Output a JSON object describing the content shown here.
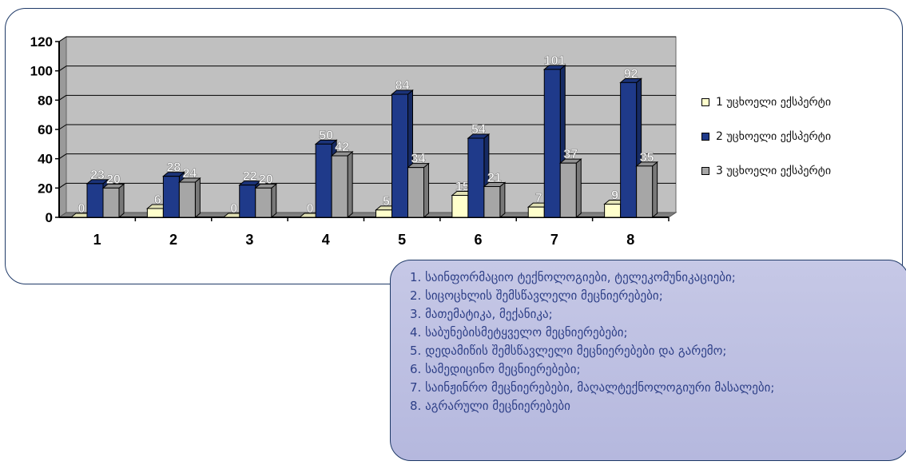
{
  "chart_data": {
    "type": "bar",
    "categories": [
      "1",
      "2",
      "3",
      "4",
      "5",
      "6",
      "7",
      "8"
    ],
    "series": [
      {
        "name": "1 უცხოელი ექსპერტი",
        "values": [
          0,
          6,
          0,
          0,
          5,
          15,
          7,
          9
        ],
        "labels": [
          "0",
          "6",
          "0",
          "0",
          "5",
          "15",
          "7",
          "9"
        ],
        "color": "#ffffcc"
      },
      {
        "name": "2 უცხოელი ექსპერტი",
        "values": [
          23,
          28,
          22,
          50,
          84,
          54,
          101,
          92
        ],
        "labels": [
          "23",
          "28",
          "22",
          "50",
          "84",
          "54",
          "101",
          "92"
        ],
        "color": "#1f3a8a"
      },
      {
        "name": "3 უცხოელი ექსპერტი",
        "values": [
          20,
          24,
          20,
          42,
          34,
          21,
          37,
          35
        ],
        "labels": [
          "20",
          "24",
          "20",
          "42",
          "34",
          "21",
          "37",
          "35"
        ],
        "color": "#a6a6a6"
      }
    ],
    "yticks": [
      "0",
      "20",
      "40",
      "60",
      "80",
      "100",
      "120"
    ],
    "ylim": [
      0,
      120
    ],
    "grid": true,
    "legend_position": "right",
    "plot_background": "#c0c0c0"
  },
  "legend": {
    "items": [
      {
        "label": "1 უცხოელი ექსპერტი",
        "color": "#ffffcc"
      },
      {
        "label": "2 უცხოელი ექსპერტი",
        "color": "#1f3a8a"
      },
      {
        "label": "3 უცხოელი ექსპერტი",
        "color": "#a6a6a6"
      }
    ]
  },
  "notes": {
    "lines": [
      "1. საინფორმაციო ტექნოლოგიები, ტელეკომუნიკაციები;",
      "2. სიცოცხლის შემსწავლელი მეცნიერებები;",
      "3. მათემატიკა, მექანიკა;",
      "4. საბუნებისმეტყველო მეცნიერებები;",
      "5. დედამიწის შემსწავლელი მეცნიერებები და გარემო;",
      "6. სამედიცინო მეცნიერებები;",
      "7. საინჟინრო მეცნიერებები, მაღალტექნოლოგიური მასალები;",
      "8. აგრარული მეცნიერებები"
    ]
  }
}
